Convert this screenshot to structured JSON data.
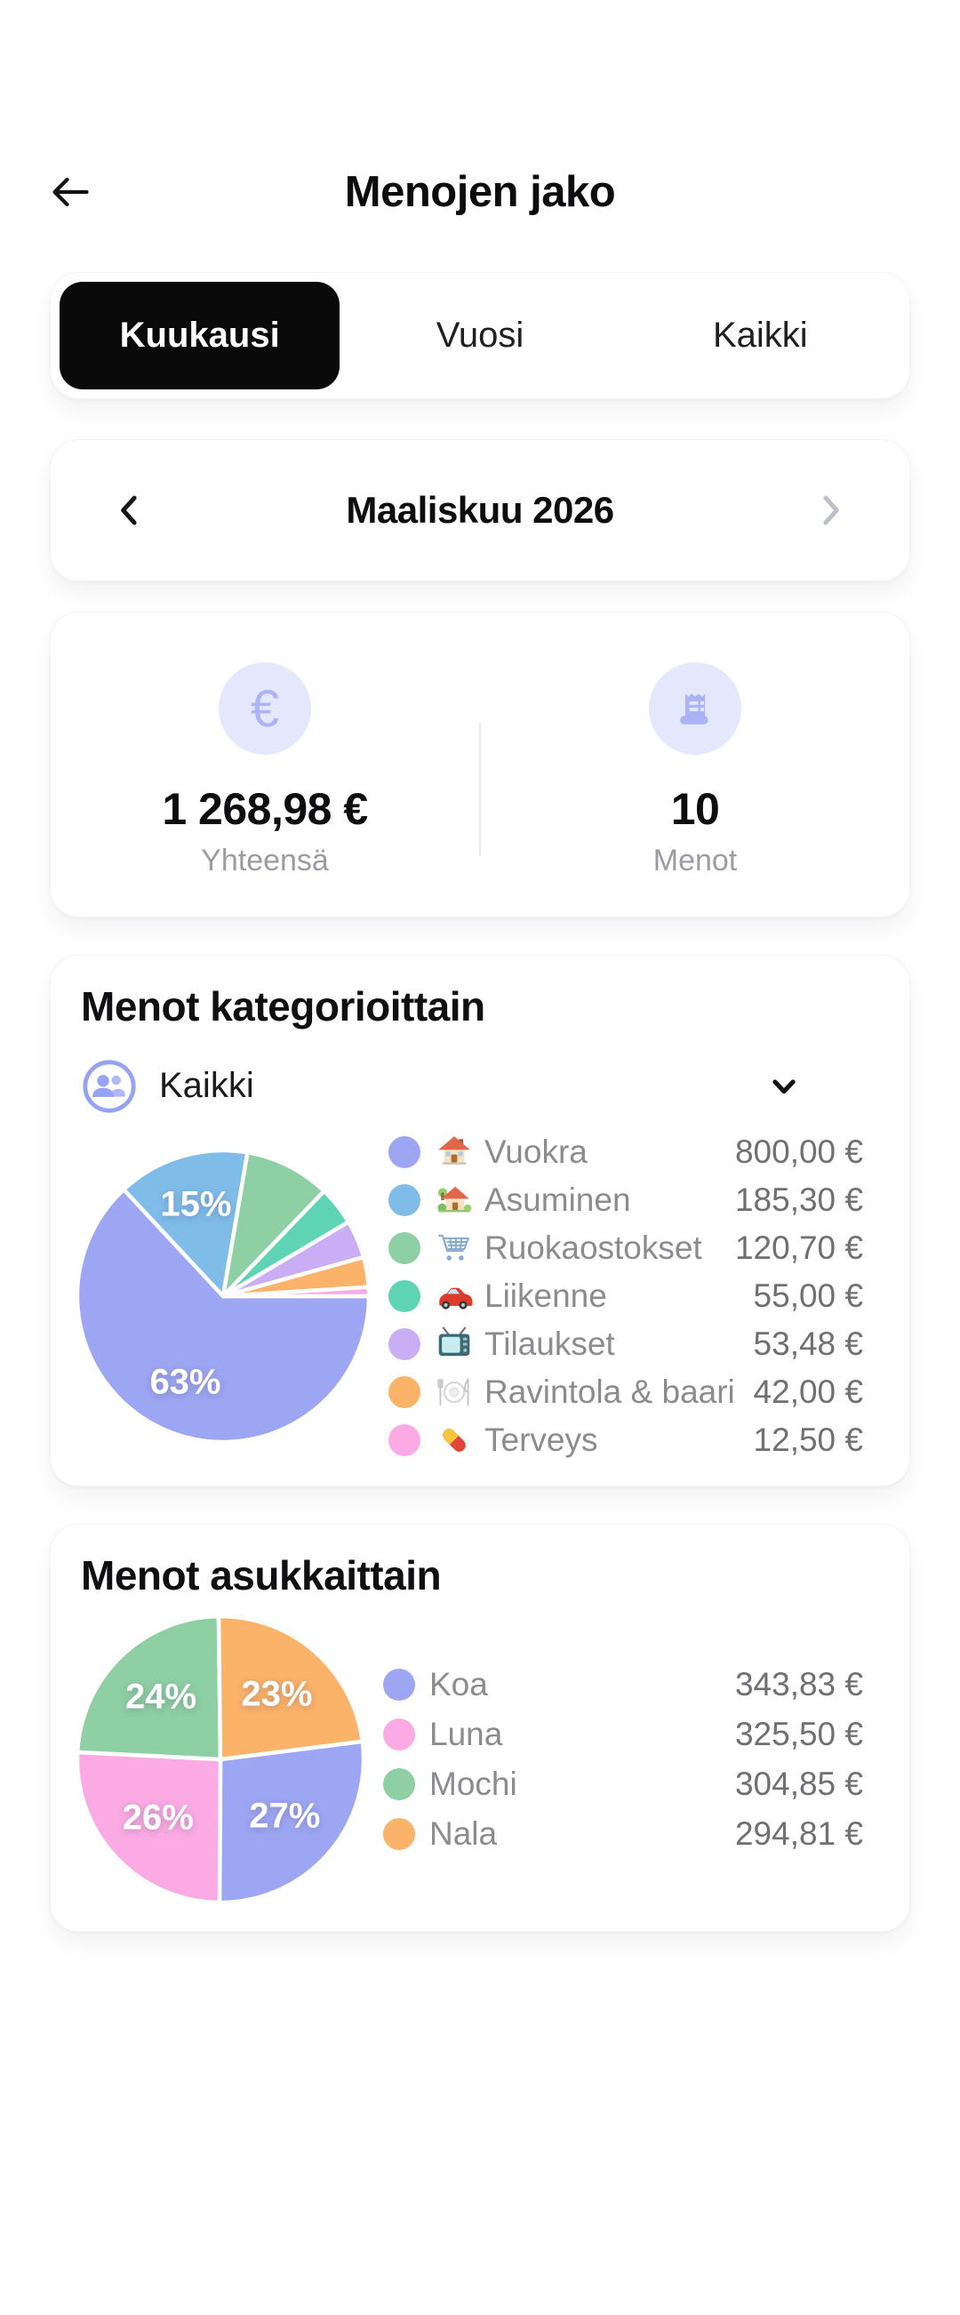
{
  "header": {
    "title": "Menojen jako"
  },
  "icons": {
    "back": "←",
    "chevron_left": "‹",
    "chevron_right": "›",
    "chevron_down": "⌄",
    "euro": "€",
    "receipt": "🧾",
    "people": "👥"
  },
  "tabs": [
    {
      "label": "Kuukausi",
      "active": true
    },
    {
      "label": "Vuosi",
      "active": false
    },
    {
      "label": "Kaikki",
      "active": false
    }
  ],
  "period": {
    "label": "Maaliskuu 2026"
  },
  "summary": {
    "total_value": "1 268,98 €",
    "total_label": "Yhteensä",
    "count_value": "10",
    "count_label": "Menot"
  },
  "categories_card": {
    "title": "Menot kategorioittain",
    "filter_label": "Kaikki"
  },
  "residents_card": {
    "title": "Menot asukkaittain"
  },
  "chart_data": [
    {
      "type": "pie",
      "title": "Menot kategorioittain",
      "total": 1268.98,
      "unit": "EUR",
      "direction": "clockwise",
      "start_angle_deg": 90,
      "legend_position": "right",
      "slices": [
        {
          "label": "Vuokra",
          "emoji": "🏠",
          "icon": "house",
          "value": 800.0,
          "value_str": "800,00 €",
          "pct": 63.0,
          "pct_label": "63%",
          "color": "#9da6f2"
        },
        {
          "label": "Asuminen",
          "emoji": "🏡",
          "icon": "house_garden",
          "value": 185.3,
          "value_str": "185,30 €",
          "pct": 14.6,
          "pct_label": "15%",
          "color": "#7fbce8"
        },
        {
          "label": "Ruokaostokset",
          "emoji": "🛒",
          "icon": "cart",
          "value": 120.7,
          "value_str": "120,70 €",
          "pct": 9.5,
          "pct_label": "",
          "color": "#8ecfa3"
        },
        {
          "label": "Liikenne",
          "emoji": "🚗",
          "icon": "car",
          "value": 55.0,
          "value_str": "55,00 €",
          "pct": 4.3,
          "pct_label": "",
          "color": "#5fd4b4"
        },
        {
          "label": "Tilaukset",
          "emoji": "📺",
          "icon": "tv",
          "value": 53.48,
          "value_str": "53,48 €",
          "pct": 4.2,
          "pct_label": "",
          "color": "#c9aef5"
        },
        {
          "label": "Ravintola & baari",
          "emoji": "🍽️",
          "icon": "restaurant",
          "value": 42.0,
          "value_str": "42,00 €",
          "pct": 3.3,
          "pct_label": "",
          "color": "#fbb269"
        },
        {
          "label": "Terveys",
          "emoji": "💊",
          "icon": "pill",
          "value": 12.5,
          "value_str": "12,50 €",
          "pct": 1.0,
          "pct_label": "",
          "color": "#fbaae3"
        }
      ]
    },
    {
      "type": "pie",
      "title": "Menot asukkaittain",
      "unit": "EUR",
      "direction": "clockwise",
      "start_angle_deg": 82.8,
      "legend_position": "right",
      "slices": [
        {
          "label": "Koa",
          "value": 343.83,
          "value_str": "343,83 €",
          "pct": 27.1,
          "pct_label": "27%",
          "color": "#9da6f2"
        },
        {
          "label": "Luna",
          "value": 325.5,
          "value_str": "325,50 €",
          "pct": 25.7,
          "pct_label": "26%",
          "color": "#fbaae3"
        },
        {
          "label": "Mochi",
          "value": 304.85,
          "value_str": "304,85 €",
          "pct": 24.0,
          "pct_label": "24%",
          "color": "#8ecfa3"
        },
        {
          "label": "Nala",
          "value": 294.81,
          "value_str": "294,81 €",
          "pct": 23.2,
          "pct_label": "23%",
          "color": "#fbb269"
        }
      ]
    }
  ]
}
